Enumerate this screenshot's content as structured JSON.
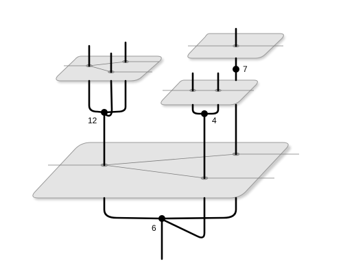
{
  "diagram": {
    "junctions": [
      {
        "id": "j12",
        "label": "12"
      },
      {
        "id": "j4",
        "label": "4"
      },
      {
        "id": "j7",
        "label": "7"
      },
      {
        "id": "j6",
        "label": "6"
      }
    ]
  }
}
